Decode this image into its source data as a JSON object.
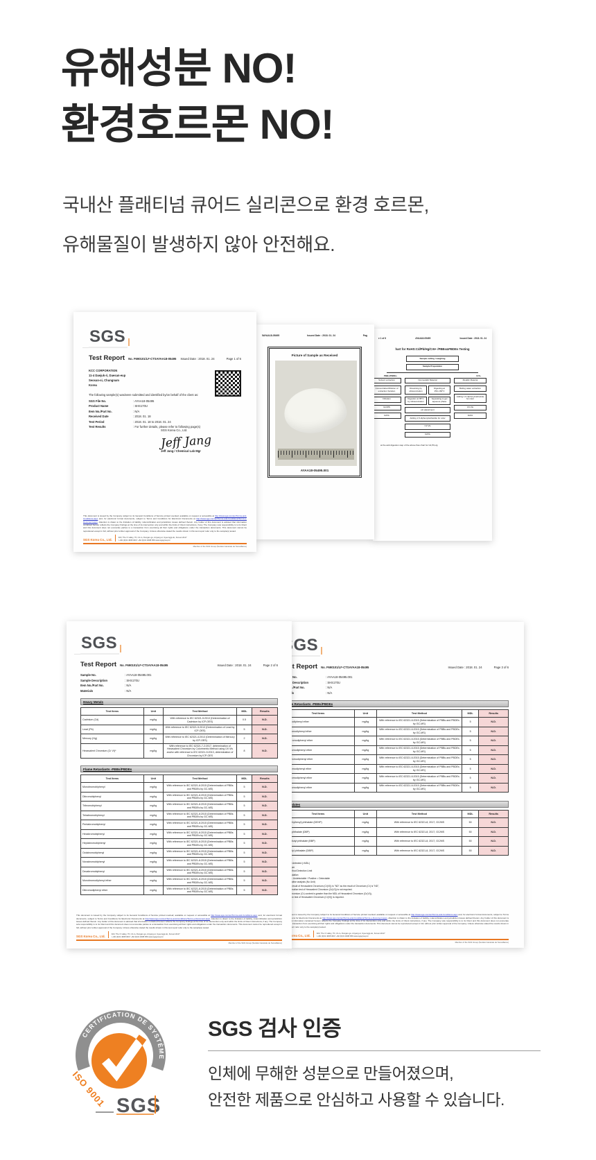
{
  "hero": {
    "heading_line1": "유해성분 NO!",
    "heading_line2": "환경호르몬 NO!",
    "subtitle_line1": "국내산 플래티넘 큐어드 실리콘으로 환경 호르몬,",
    "subtitle_line2": "유해물질이 발생하지 않아 안전해요."
  },
  "report_common": {
    "logo": "SGS",
    "title": "Test Report",
    "report_no": "No. F690101/LF-CTSAYAA18-05495",
    "issued": "Issued Date :  2018. 01. 24",
    "company": "SGS Korea Co., Ltd.",
    "address": "322, The O valley, 76, LS-ro, Dongan-gu, Anyang-si, Gyeonggi-do, Korea 14117",
    "phone": "t +82 (0)31 4608 000  f +82 (0)31 4608 059  www.sgsgroup.kr",
    "member": "Member of the SGS Group (Société Générale de Surveillance)",
    "disclaimer1": "This document is issued by the Company subject to its General Conditions of Service printed overleaf, available on request or accessible at ",
    "link1": "http://www.sgs.com/en/Terms-and-Conditions.aspx",
    "disclaimer2": " and, for electronic format documents, subject to Terms and Conditions for Electronic Documents at ",
    "link2": "http://www.sgs.com/en/Terms-and-Conditions/Terms-e-Document.aspx",
    "disclaimer3": ". Attention is drawn to the limitation of liability, indemnification and jurisdiction issues defined therein. Any holder of this document is advised that information contained hereon reflects the Company findings at the time of its intervention only and within the limits of Client instructions, if any. The Company sole responsibility is to its Client and this document does not exonerate parties to a transaction from exercising all their rights and obligations under the transaction documents. This document cannot be reproduced except in full, without prior written approval of the Company. Unless otherwise stated the results shown in this test report refer only to the sample(s) tested."
  },
  "page1": {
    "page": "Page 1 of 6",
    "client": [
      "KCC CORPORATION",
      "11-4 Daejuk-ri, Daesan-eup",
      "Seosan-si, Chungnam",
      "Korea"
    ],
    "intro": "The following sample(s) was/were submitted and identified by/on behalf of the client as:",
    "fields": [
      [
        "SGS File No.",
        "AYAA18-05495"
      ],
      [
        "Product Name",
        "SHS170U"
      ],
      [
        "Item No./Part No.",
        "N/A"
      ],
      [
        "Received Date",
        "2018. 01. 18"
      ],
      [
        "Test Period",
        "2018. 01. 18  to  2018. 01. 24"
      ],
      [
        "Test Results",
        "For further details, please refer to following page(s)"
      ]
    ],
    "signature": "Jeff Jang",
    "signer": "Jeff Jang / Chemical Lab Mgr"
  },
  "page_photo": {
    "header_fragment": "5AYAA18-05495",
    "page_fragment": "Pag",
    "picture_title": "Picture of Sample as Received",
    "caption": "AYAA18-05495.001"
  },
  "page_flow": {
    "left_fragment": "e 1 of 6",
    "header_fragment": "AYAA18-05495",
    "title": "hart for RoHS:Cd/Pb/Hg/Cr6+ /PBBs&PBDEs Testing",
    "branch_left": "PBBs/PBDEs",
    "branch_right": "Cr6+",
    "top_boxes": [
      "Sample cutting / weighing",
      "Sample Preparation"
    ],
    "col_left": [
      "Solvent extraction",
      "Concentration/Dilution of extraction Solution",
      "Filtration",
      "GC/MS",
      "DATA"
    ],
    "col_mid": [
      "Nonmetallic Material",
      [
        "Dissolving by ultrasonication",
        "Digesting at 150~160°C"
      ],
      [
        "Digestion at 95°C by ultrasonication",
        "Separating to get aqueous phase"
      ],
      "pH adjustment",
      "Adding 1,5-diphenylcarbazide for color",
      "UV-Vis",
      "DATA"
    ],
    "col_right": [
      "Metallic Material",
      "Boiling water extraction",
      "Adding 1,5-diphenylcarbazide for color",
      "UV-Vis",
      "DATA"
    ],
    "note": "at the acid digestion step of the above flow chart for Cd,Pb,Hg"
  },
  "page2": {
    "page": "Page 2 of 6",
    "fields": [
      [
        "Sample No.",
        "AYAA18-05495.001"
      ],
      [
        "Sample Description",
        "SHS170U"
      ],
      [
        "Item No./Part No.",
        "N/A"
      ],
      [
        "Materials",
        "N/A"
      ]
    ],
    "heavy_title": "Heavy Metals",
    "heavy_table": {
      "header": [
        "Test Items",
        "Unit",
        "Test Method",
        "MDL",
        "Results"
      ],
      "rows": [
        [
          "Cadmium (Cd)",
          "mg/kg",
          "With reference to IEC 62321-5:2013 (Determination of Cadmium by ICP-OES)",
          "0.5",
          "N.D."
        ],
        [
          "Lead (Pb)",
          "mg/kg",
          "With reference to IEC 62321-5:2013 (Determination of Lead by ICP-OES)",
          "5",
          "N.D."
        ],
        [
          "Mercury (Hg)",
          "mg/kg",
          "With reference to IEC 62321-4:2013 (Determination of Mercury by ICP-OES)",
          "2",
          "N.D."
        ],
        [
          "Hexavalent Chromium (Cr VI)*",
          "mg/kg",
          "With reference to IEC 62321-7-2:2017, determination of Hexavalent Chromium by Colorimetric Method using UV-Vis and/or with reference to IEC 62321-5:2013, determination of Chromium by ICP-OES",
          "8",
          "N.D."
        ]
      ]
    },
    "flame_title": "Flame Retardants -PBBs/PBDEs",
    "flame_table": {
      "header": [
        "Test Items",
        "Unit",
        "Test Method",
        "MDL",
        "Results"
      ],
      "rows": [
        [
          "Monobromobiphenyl",
          "mg/kg",
          "With reference to IEC 62321-6:2015 (Determination of PBBs and PBDEs by GC-MS)",
          "5",
          "N.D."
        ],
        [
          "Dibromobiphenyl",
          "mg/kg",
          "With reference to IEC 62321-6:2015 (Determination of PBBs and PBDEs by GC-MS)",
          "5",
          "N.D."
        ],
        [
          "Tribromobiphenyl",
          "mg/kg",
          "With reference to IEC 62321-6:2015 (Determination of PBBs and PBDEs by GC-MS)",
          "5",
          "N.D."
        ],
        [
          "Tetrabromobiphenyl",
          "mg/kg",
          "With reference to IEC 62321-6:2015 (Determination of PBBs and PBDEs by GC-MS)",
          "5",
          "N.D."
        ],
        [
          "Pentabromobiphenyl",
          "mg/kg",
          "With reference to IEC 62321-6:2015 (Determination of PBBs and PBDEs by GC-MS)",
          "5",
          "N.D."
        ],
        [
          "Hexabromobiphenyl",
          "mg/kg",
          "With reference to IEC 62321-6:2015 (Determination of PBBs and PBDEs by GC-MS)",
          "5",
          "N.D."
        ],
        [
          "Heptabromobiphenyl",
          "mg/kg",
          "With reference to IEC 62321-6:2015 (Determination of PBBs and PBDEs by GC-MS)",
          "5",
          "N.D."
        ],
        [
          "Octabromobiphenyl",
          "mg/kg",
          "With reference to IEC 62321-6:2015 (Determination of PBBs and PBDEs by GC-MS)",
          "5",
          "N.D."
        ],
        [
          "Nonabromobiphenyl",
          "mg/kg",
          "With reference to IEC 62321-6:2015 (Determination of PBBs and PBDEs by GC-MS)",
          "5",
          "N.D."
        ],
        [
          "Decabromobiphenyl",
          "mg/kg",
          "With reference to IEC 62321-6:2015 (Determination of PBBs and PBDEs by GC-MS)",
          "5",
          "N.D."
        ],
        [
          "Monobromodiphenyl ether",
          "mg/kg",
          "With reference to IEC 62321-6:2015 (Determination of PBBs and PBDEs by GC-MS)",
          "5",
          "N.D."
        ],
        [
          "Dibromodiphenyl ether",
          "mg/kg",
          "With reference to IEC 62321-6:2015 (Determination of PBBs and PBDEs by GC-MS)",
          "5",
          "N.D."
        ]
      ]
    }
  },
  "page3": {
    "page": "Page 3 of 6",
    "fields": [
      [
        "Sample No.",
        "AYAA18-05495.001"
      ],
      [
        "Sample Description",
        "SHS170U"
      ],
      [
        "Item No./Part No.",
        "N/A"
      ],
      [
        "Materials",
        "N/A"
      ]
    ],
    "flame_title": "Flame Retardants -PBBs/PBDEs",
    "flame_table": {
      "header": [
        "Test Items",
        "Unit",
        "Test Method",
        "MDL",
        "Results"
      ],
      "rows": [
        [
          "Tribromodiphenyl ether",
          "mg/kg",
          "With reference to IEC 62321-6:2015 (Determination of PBBs and PBDEs by GC-MS)",
          "5",
          "N.D."
        ],
        [
          "Tetrabromodiphenyl ether",
          "mg/kg",
          "With reference to IEC 62321-6:2015 (Determination of PBBs and PBDEs by GC-MS)",
          "5",
          "N.D."
        ],
        [
          "Pentabromodiphenyl ether",
          "mg/kg",
          "With reference to IEC 62321-6:2015 (Determination of PBBs and PBDEs by GC-MS)",
          "5",
          "N.D."
        ],
        [
          "Hexabromodiphenyl ether",
          "mg/kg",
          "With reference to IEC 62321-6:2015 (Determination of PBBs and PBDEs by GC-MS)",
          "5",
          "N.D."
        ],
        [
          "Heptabromodiphenyl ether",
          "mg/kg",
          "With reference to IEC 62321-6:2015 (Determination of PBBs and PBDEs by GC-MS)",
          "5",
          "N.D."
        ],
        [
          "Octabromodiphenyl ether",
          "mg/kg",
          "With reference to IEC 62321-6:2015 (Determination of PBBs and PBDEs by GC-MS)",
          "5",
          "N.D."
        ],
        [
          "Nonabromodiphenyl ether",
          "mg/kg",
          "With reference to IEC 62321-6:2015 (Determination of PBBs and PBDEs by GC-MS)",
          "5",
          "N.D."
        ],
        [
          "Decabromodiphenyl ether",
          "mg/kg",
          "With reference to IEC 62321-6:2015 (Determination of PBBs and PBDEs by GC-MS)",
          "5",
          "N.D."
        ]
      ]
    },
    "phthalate_title": "Phthalates",
    "phthalate_table": {
      "header": [
        "Test Items",
        "Unit",
        "Test Method",
        "MDL",
        "Results"
      ],
      "rows": [
        [
          "Bis(2-ethylhexyl) phthalate (DEHP)",
          "mg/kg",
          "With reference to IEC 62321-8, 2017, GC/MS",
          "50",
          "N.D."
        ],
        [
          "Dibutyl phthalate (DBP)",
          "mg/kg",
          "With reference to IEC 62321-8, 2017, GC/MS",
          "50",
          "N.D."
        ],
        [
          "Benzyl butyl phthalate (BBP)",
          "mg/kg",
          "With reference to IEC 62321-8, 2017, GC/MS",
          "50",
          "N.D."
        ],
        [
          "Diisobutyl phthalate (DIBP)",
          "mg/kg",
          "With reference to IEC 62321-8, 2017, GC/MS",
          "50",
          "N.D."
        ]
      ]
    },
    "notes": [
      "N.D. = Not detected (<MDL)",
      "mg/kg = ppm",
      "MDL = Method Detection Limit",
      "- = No regulation",
      "Negative = Undetectable / Positive = Detectable",
      "** = Qualitative analysis (No Unit)",
      "* = a. The result of Hexavalent Chromium (Cr(VI)) is \"ND\" as the result of Chromium (Cr) is \"ND\",",
      "and confirmation test of Hexavalent Chromium (Cr(VI)) is not required.",
      "b. If the Chromium (Cr) content is greater than the MDL of Hexavalent Chromium (Cr(VI)),",
      "confirmation test of Hexavalent Chromium (Cr(VI)) is required."
    ]
  },
  "cta": {
    "title": "SGS 검사 인증",
    "line1": "인체에 무해한 성분으로 만들어졌으며,",
    "line2": "안전한 제품으로 안심하고 사용할 수 있습니다.",
    "badge_arc_text": "CERTIFICATION DE SYSTÈME",
    "badge_side_text": "ISO 9001",
    "badge_logo": "SGS"
  },
  "colors": {
    "accent_orange": "#e87722",
    "badge_gray": "#8f8f8f",
    "result_pink": "#f6d7d7",
    "heading_dark": "#272727"
  }
}
